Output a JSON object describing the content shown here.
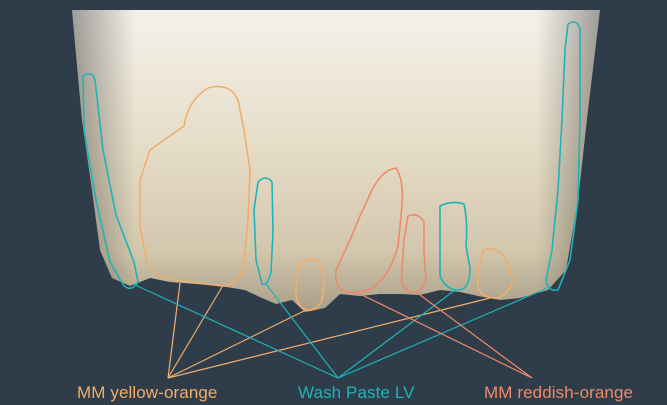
{
  "labels": {
    "yellow_orange": "MM yellow-orange",
    "wash_paste": "Wash Paste LV",
    "reddish_orange": "MM reddish-orange"
  },
  "colors": {
    "background": "#2f3d4a",
    "yellow_orange": "#f0ae6c",
    "wash_paste": "#1fb3b7",
    "reddish_orange": "#ee8a68"
  }
}
